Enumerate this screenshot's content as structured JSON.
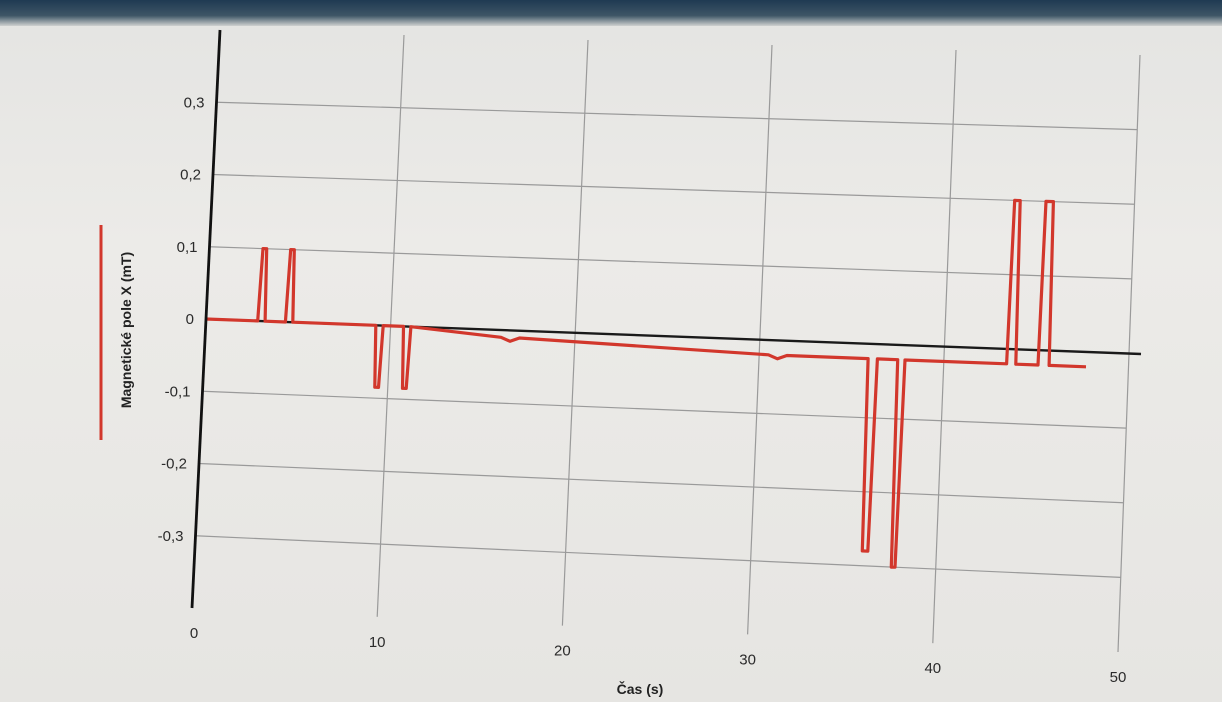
{
  "chart_data": {
    "type": "line",
    "title": "",
    "xlabel": "Čas (s)",
    "ylabel": "Magnetické pole X (mT)",
    "xlim": [
      0,
      50
    ],
    "ylim": [
      -0.4,
      0.4
    ],
    "x_ticks": [
      0,
      10,
      20,
      30,
      40,
      50
    ],
    "x_tick_labels": [
      "0",
      "10",
      "20",
      "30",
      "40",
      "50"
    ],
    "y_ticks": [
      0.3,
      0.2,
      0.1,
      0,
      -0.1,
      -0.2,
      -0.3
    ],
    "y_tick_labels": [
      "0,3",
      "0,2",
      "0,1",
      "0",
      "-0,1",
      "-0,2",
      "-0,3"
    ],
    "grid": true,
    "legend": "none",
    "series": [
      {
        "color": "#d2372c",
        "x": [
          0,
          2.8,
          2.9,
          3.1,
          3.2,
          4.3,
          4.4,
          4.6,
          4.7,
          9.2,
          9.3,
          9.5,
          9.6,
          10.7,
          10.8,
          11.0,
          11.1,
          16.0,
          16.5,
          17.0,
          30.5,
          31.0,
          31.5,
          35.9,
          36.0,
          36.3,
          36.4,
          37.5,
          37.6,
          37.8,
          37.9,
          43.4,
          43.5,
          43.8,
          43.9,
          45.1,
          45.2,
          45.6,
          45.7,
          47.7
        ],
        "y": [
          0,
          0,
          0.1,
          0.1,
          0,
          0,
          0.1,
          0.1,
          0,
          0,
          -0.085,
          -0.085,
          0,
          0,
          -0.085,
          -0.085,
          0,
          -0.01,
          -0.015,
          -0.01,
          -0.02,
          -0.025,
          -0.02,
          -0.02,
          -0.28,
          -0.28,
          -0.02,
          -0.02,
          -0.3,
          -0.3,
          -0.02,
          -0.02,
          0.2,
          0.2,
          -0.02,
          -0.02,
          0.2,
          0.2,
          -0.02,
          -0.02
        ]
      }
    ]
  }
}
